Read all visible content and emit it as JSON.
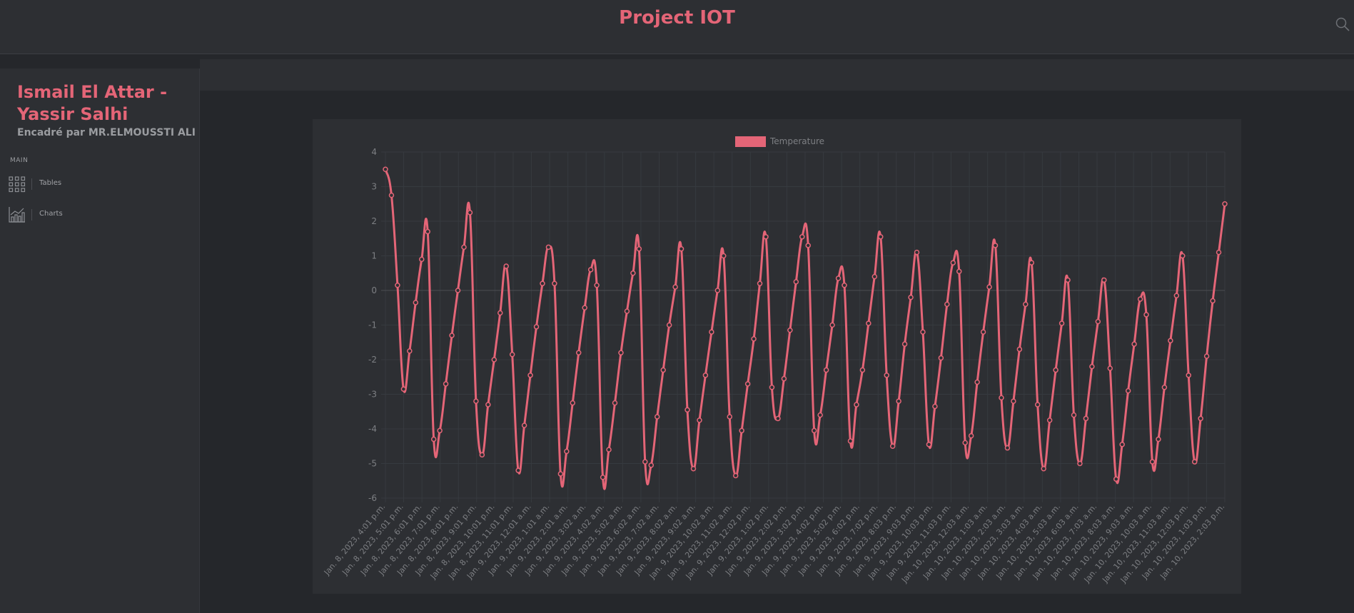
{
  "header": {
    "title": "Project IOT",
    "search_icon": "search-icon"
  },
  "sidebar": {
    "title": "Ismail El Attar - Yassir Salhi",
    "subtitle": "Encadré par MR.ELMOUSSTI ALI",
    "section_label": "MAIN",
    "items": [
      {
        "label": "Tables",
        "icon": "grid-icon"
      },
      {
        "label": "Charts",
        "icon": "chart-icon"
      }
    ]
  },
  "colors": {
    "accent": "#e46577",
    "background": "#25272b",
    "panel": "#2d2f33",
    "muted_text": "#9a9ca0",
    "grid": "#383b40"
  },
  "chart_data": {
    "type": "line",
    "title": "",
    "xlabel": "",
    "ylabel": "",
    "ylim": [
      -6,
      4
    ],
    "grid": true,
    "legend_position": "top",
    "series": [
      {
        "name": "Temperature",
        "color": "#e46577",
        "values": [
          3.5,
          2.75,
          0.15,
          -2.85,
          -1.75,
          -0.35,
          0.9,
          1.7,
          -4.3,
          -4.05,
          -2.7,
          -1.3,
          0.0,
          1.25,
          2.25,
          -3.2,
          -4.75,
          -3.3,
          -2.0,
          -0.65,
          0.7,
          -1.85,
          -5.2,
          -3.9,
          -2.45,
          -1.05,
          0.2,
          1.25,
          0.2,
          -5.3,
          -4.65,
          -3.25,
          -1.8,
          -0.5,
          0.6,
          0.15,
          -5.4,
          -4.6,
          -3.25,
          -1.8,
          -0.6,
          0.5,
          1.2,
          -4.95,
          -5.05,
          -3.65,
          -2.3,
          -1.0,
          0.1,
          1.2,
          -3.45,
          -5.15,
          -3.75,
          -2.45,
          -1.2,
          0.0,
          1.0,
          -3.65,
          -5.35,
          -4.05,
          -2.7,
          -1.4,
          0.2,
          1.55,
          -2.8,
          -3.7,
          -2.55,
          -1.15,
          0.25,
          1.55,
          1.3,
          -4.05,
          -3.6,
          -2.3,
          -1.0,
          0.35,
          0.15,
          -4.35,
          -3.3,
          -2.3,
          -0.95,
          0.4,
          1.55,
          -2.45,
          -4.5,
          -3.2,
          -1.55,
          -0.2,
          1.1,
          -1.2,
          -4.45,
          -3.35,
          -1.95,
          -0.4,
          0.8,
          0.55,
          -4.4,
          -4.2,
          -2.65,
          -1.2,
          0.1,
          1.3,
          -3.1,
          -4.55,
          -3.2,
          -1.7,
          -0.4,
          0.8,
          -3.3,
          -5.15,
          -3.75,
          -2.3,
          -0.95,
          0.3,
          -3.6,
          -5.0,
          -3.7,
          -2.2,
          -0.9,
          0.3,
          -2.25,
          -5.45,
          -4.45,
          -2.9,
          -1.55,
          -0.25,
          -0.7,
          -4.95,
          -4.3,
          -2.8,
          -1.45,
          -0.15,
          1.0,
          -2.45,
          -4.95,
          -3.7,
          -1.9,
          -0.3,
          1.1,
          2.5
        ],
        "x_tick_labels": [
          "Jan. 8, 2023, 4:01 p.m.",
          "Jan. 8, 2023, 5:01 p.m.",
          "Jan. 8, 2023, 6:01 p.m.",
          "Jan. 8, 2023, 7:01 p.m.",
          "Jan. 8, 2023, 8:01 p.m.",
          "Jan. 8, 2023, 9:01 p.m.",
          "Jan. 8, 2023, 10:01 p.m.",
          "Jan. 8, 2023, 11:01 p.m.",
          "Jan. 9, 2023, 12:01 a.m.",
          "Jan. 9, 2023, 1:01 a.m.",
          "Jan. 9, 2023, 2:01 a.m.",
          "Jan. 9, 2023, 3:02 a.m.",
          "Jan. 9, 2023, 4:02 a.m.",
          "Jan. 9, 2023, 5:02 a.m.",
          "Jan. 9, 2023, 6:02 a.m.",
          "Jan. 9, 2023, 7:02 a.m.",
          "Jan. 9, 2023, 8:02 a.m.",
          "Jan. 9, 2023, 9:02 a.m.",
          "Jan. 9, 2023, 10:02 a.m.",
          "Jan. 9, 2023, 11:02 a.m.",
          "Jan. 9, 2023, 12:02 p.m.",
          "Jan. 9, 2023, 1:02 p.m.",
          "Jan. 9, 2023, 2:02 p.m.",
          "Jan. 9, 2023, 3:02 p.m.",
          "Jan. 9, 2023, 4:02 p.m.",
          "Jan. 9, 2023, 5:02 p.m.",
          "Jan. 9, 2023, 6:02 p.m.",
          "Jan. 9, 2023, 7:02 p.m.",
          "Jan. 9, 2023, 8:03 p.m.",
          "Jan. 9, 2023, 9:03 p.m.",
          "Jan. 9, 2023, 10:03 p.m.",
          "Jan. 9, 2023, 11:03 p.m.",
          "Jan. 10, 2023, 12:03 a.m.",
          "Jan. 10, 2023, 1:03 a.m.",
          "Jan. 10, 2023, 2:03 a.m.",
          "Jan. 10, 2023, 3:03 a.m.",
          "Jan. 10, 2023, 4:03 a.m.",
          "Jan. 10, 2023, 5:03 a.m.",
          "Jan. 10, 2023, 6:03 a.m.",
          "Jan. 10, 2023, 7:03 a.m.",
          "Jan. 10, 2023, 8:03 a.m.",
          "Jan. 10, 2023, 9:03 a.m.",
          "Jan. 10, 2023, 10:03 a.m.",
          "Jan. 10, 2023, 11:03 a.m.",
          "Jan. 10, 2023, 12:03 p.m.",
          "Jan. 10, 2023, 1:03 p.m.",
          "Jan. 10, 2023, 2:03 p.m."
        ]
      }
    ],
    "y_ticks": [
      4,
      3,
      2,
      1,
      0,
      -1,
      -2,
      -3,
      -4,
      -5,
      -6
    ]
  }
}
